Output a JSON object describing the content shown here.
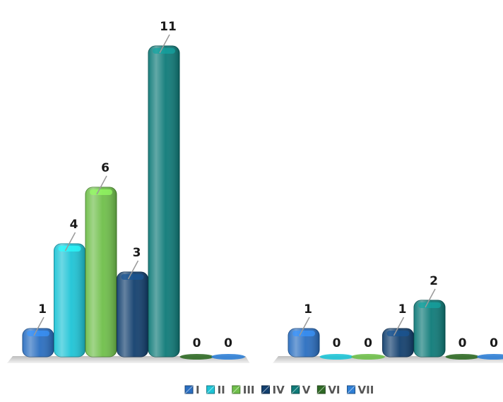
{
  "chart_data": {
    "type": "bar",
    "groups": [
      "",
      ""
    ],
    "series": [
      {
        "name": "I",
        "color": "#2a6ec0",
        "values": [
          1,
          1
        ]
      },
      {
        "name": "II",
        "color": "#1ec4d6",
        "values": [
          4,
          0
        ]
      },
      {
        "name": "III",
        "color": "#6fbf4a",
        "values": [
          6,
          0
        ]
      },
      {
        "name": "IV",
        "color": "#123f6e",
        "values": [
          3,
          1
        ]
      },
      {
        "name": "V",
        "color": "#0e7a78",
        "values": [
          11,
          2
        ]
      },
      {
        "name": "VI",
        "color": "#2f6a25",
        "values": [
          0,
          0
        ]
      },
      {
        "name": "VII",
        "color": "#2f7fd6",
        "values": [
          0,
          0
        ]
      }
    ],
    "data_labels": [
      [
        "1",
        "4",
        "6",
        "3",
        "11",
        "0",
        "0"
      ],
      [
        "1",
        "0",
        "0",
        "1",
        "2",
        "0",
        "0"
      ]
    ],
    "ylim": [
      0,
      11
    ],
    "grid": false,
    "legend_position": "bottom",
    "style": "3d-rounded-columns"
  }
}
